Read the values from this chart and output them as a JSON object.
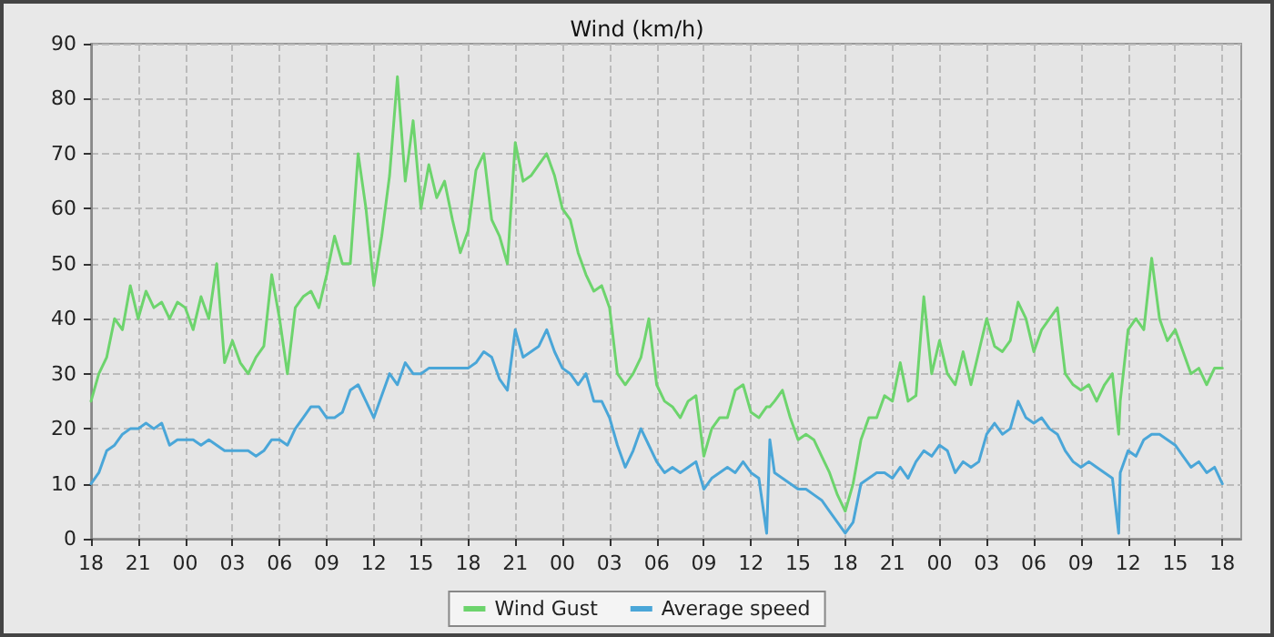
{
  "chart_data": {
    "type": "line",
    "title": "Wind (km/h)",
    "x": [
      18,
      18.5,
      19,
      19.5,
      20,
      20.5,
      21,
      21.5,
      22,
      22.5,
      23,
      23.5,
      24,
      24.5,
      25,
      25.5,
      26,
      26.5,
      27,
      27.5,
      28,
      28.5,
      29,
      29.5,
      30,
      30.5,
      31,
      31.5,
      32,
      32.5,
      33,
      33.5,
      34,
      34.5,
      35,
      35.5,
      36,
      36.5,
      37,
      37.5,
      38,
      38.5,
      39,
      39.5,
      40,
      40.5,
      41,
      41.5,
      42,
      42.5,
      43,
      43.5,
      44,
      44.5,
      45,
      45.5,
      46,
      46.5,
      47,
      47.5,
      48,
      48.5,
      49,
      49.5,
      50,
      50.5,
      51,
      51.5,
      52,
      52.5,
      53,
      53.5,
      54,
      54.5,
      55,
      55.5,
      56,
      56.5,
      57,
      57.5,
      58,
      58.5,
      59,
      59.5,
      60,
      60.5,
      61,
      61.2,
      61.5,
      62,
      62.5,
      63,
      63.5,
      64,
      64.5,
      65,
      65.5,
      66,
      66.5,
      67,
      67.5,
      68,
      68.5,
      69,
      69.5,
      70,
      70.5,
      71,
      71.5,
      72,
      72.5,
      73,
      73.5,
      74,
      74.5,
      75,
      75.5,
      76,
      76.5,
      77,
      77.5,
      78,
      78.5,
      79,
      79.5,
      80,
      80.5,
      81,
      81.5,
      82,
      82.5,
      83,
      83.4,
      83.5,
      84,
      84.5,
      85,
      85.5,
      86,
      86.5,
      87,
      87.5,
      88,
      88.5,
      89,
      89.5,
      90
    ],
    "series": [
      {
        "name": "Wind Gust",
        "color": "#6dd46d",
        "values": [
          25,
          30,
          33,
          40,
          38,
          46,
          40,
          45,
          42,
          43,
          40,
          43,
          42,
          38,
          44,
          40,
          50,
          32,
          36,
          32,
          30,
          33,
          35,
          48,
          40,
          30,
          42,
          44,
          45,
          42,
          48,
          55,
          50,
          50,
          70,
          60,
          46,
          55,
          66,
          84,
          65,
          76,
          60,
          68,
          62,
          65,
          58,
          52,
          56,
          67,
          70,
          58,
          55,
          50,
          72,
          65,
          66,
          68,
          70,
          66,
          60,
          58,
          52,
          48,
          45,
          46,
          42,
          30,
          28,
          30,
          33,
          40,
          28,
          25,
          24,
          22,
          25,
          26,
          15,
          20,
          22,
          22,
          27,
          28,
          23,
          22,
          24,
          24,
          25,
          27,
          22,
          18,
          19,
          18,
          15,
          12,
          8,
          5,
          10,
          18,
          22,
          22,
          26,
          25,
          32,
          25,
          26,
          44,
          30,
          36,
          30,
          28,
          34,
          28,
          34,
          40,
          35,
          34,
          36,
          43,
          40,
          34,
          38,
          40,
          42,
          30,
          28,
          27,
          28,
          25,
          28,
          30,
          19,
          25,
          38,
          40,
          38,
          51,
          40,
          36,
          38,
          34,
          30,
          31,
          28,
          31,
          31
        ]
      },
      {
        "name": "Average speed",
        "color": "#4aa6d8",
        "values": [
          10,
          12,
          16,
          17,
          19,
          20,
          20,
          21,
          20,
          21,
          17,
          18,
          18,
          18,
          17,
          18,
          17,
          16,
          16,
          16,
          16,
          15,
          16,
          18,
          18,
          17,
          20,
          22,
          24,
          24,
          22,
          22,
          23,
          27,
          28,
          25,
          22,
          26,
          30,
          28,
          32,
          30,
          30,
          31,
          31,
          31,
          31,
          31,
          31,
          32,
          34,
          33,
          29,
          27,
          38,
          33,
          34,
          35,
          38,
          34,
          31,
          30,
          28,
          30,
          25,
          25,
          22,
          17,
          13,
          16,
          20,
          17,
          14,
          12,
          13,
          12,
          13,
          14,
          9,
          11,
          12,
          13,
          12,
          14,
          12,
          11,
          1,
          18,
          12,
          11,
          10,
          9,
          9,
          8,
          7,
          5,
          3,
          1,
          3,
          10,
          11,
          12,
          12,
          11,
          13,
          11,
          14,
          16,
          15,
          17,
          16,
          12,
          14,
          13,
          14,
          19,
          21,
          19,
          20,
          25,
          22,
          21,
          22,
          20,
          19,
          16,
          14,
          13,
          14,
          13,
          12,
          11,
          1,
          12,
          16,
          15,
          18,
          19,
          19,
          18,
          17,
          15,
          13,
          14,
          12,
          13,
          10
        ]
      }
    ],
    "xlim": [
      18,
      91.2
    ],
    "xticks": [
      {
        "value": 18,
        "label": "18"
      },
      {
        "value": 21,
        "label": "21"
      },
      {
        "value": 24,
        "label": "00"
      },
      {
        "value": 27,
        "label": "03"
      },
      {
        "value": 30,
        "label": "06"
      },
      {
        "value": 33,
        "label": "09"
      },
      {
        "value": 36,
        "label": "12"
      },
      {
        "value": 39,
        "label": "15"
      },
      {
        "value": 42,
        "label": "18"
      },
      {
        "value": 45,
        "label": "21"
      },
      {
        "value": 48,
        "label": "00"
      },
      {
        "value": 51,
        "label": "03"
      },
      {
        "value": 54,
        "label": "06"
      },
      {
        "value": 57,
        "label": "09"
      },
      {
        "value": 60,
        "label": "12"
      },
      {
        "value": 63,
        "label": "15"
      },
      {
        "value": 66,
        "label": "18"
      },
      {
        "value": 69,
        "label": "21"
      },
      {
        "value": 72,
        "label": "00"
      },
      {
        "value": 75,
        "label": "03"
      },
      {
        "value": 78,
        "label": "06"
      },
      {
        "value": 81,
        "label": "09"
      },
      {
        "value": 84,
        "label": "12"
      },
      {
        "value": 87,
        "label": "15"
      },
      {
        "value": 90,
        "label": "18"
      }
    ],
    "ylim": [
      0,
      90
    ],
    "yticks": [
      0,
      10,
      20,
      30,
      40,
      50,
      60,
      70,
      80,
      90
    ],
    "grid": true,
    "legend": "bottom",
    "marker": "none",
    "line_style": "solid"
  }
}
